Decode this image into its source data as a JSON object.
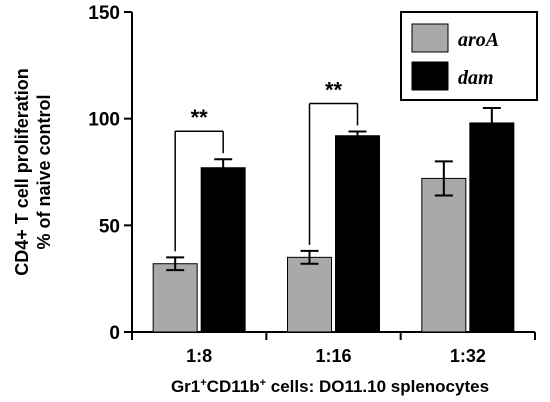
{
  "chart_data": {
    "type": "bar",
    "categories": [
      "1:8",
      "1:16",
      "1:32"
    ],
    "series": [
      {
        "name": "aroA",
        "values": [
          32,
          35,
          72
        ],
        "errors": [
          3,
          3,
          8
        ],
        "color": "#a9a9a9"
      },
      {
        "name": "dam",
        "values": [
          77,
          92,
          98
        ],
        "errors": [
          4,
          2,
          7
        ],
        "color": "#000000"
      }
    ],
    "ylabel_line1": "CD4+ T cell proliferation",
    "ylabel_line2": "% of naive control",
    "xlabel_parts": [
      "Gr1",
      "+",
      "CD11b",
      "+",
      " cells: DO11.10 splenocytes"
    ],
    "ylim": [
      0,
      150
    ],
    "yticks": [
      0,
      50,
      100,
      150
    ],
    "significance": [
      {
        "category": "1:8",
        "label": "**"
      },
      {
        "category": "1:16",
        "label": "**"
      }
    ],
    "legend_position": "top-right",
    "grid": false
  }
}
